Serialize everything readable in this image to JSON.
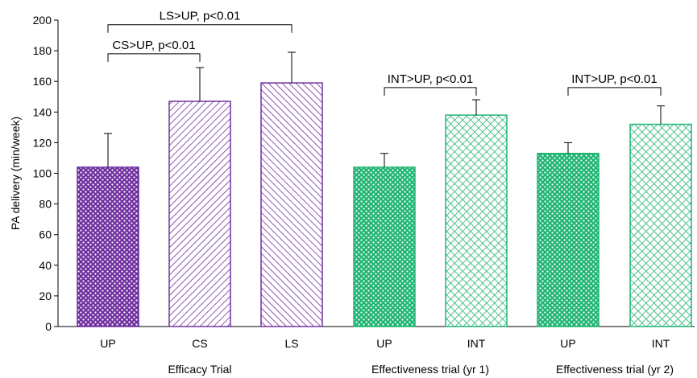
{
  "chart_data": {
    "type": "bar",
    "ylabel": "PA delivery (min/week)",
    "ylim": [
      0,
      200
    ],
    "yticks": [
      0,
      20,
      40,
      60,
      80,
      100,
      120,
      140,
      160,
      180,
      200
    ],
    "grid": false,
    "legend": "none",
    "bars": [
      {
        "label": "UP",
        "group": 0,
        "value": 104,
        "err": 22,
        "color": "#7030A0",
        "pattern": "dots"
      },
      {
        "label": "CS",
        "group": 0,
        "value": 147,
        "err": 22,
        "color": "#7030A0",
        "pattern": "diag-back"
      },
      {
        "label": "LS",
        "group": 0,
        "value": 159,
        "err": 20,
        "color": "#7030A0",
        "pattern": "diag-fwd"
      },
      {
        "label": "UP",
        "group": 1,
        "value": 104,
        "err": 9,
        "color": "#21B573",
        "pattern": "dots"
      },
      {
        "label": "INT",
        "group": 1,
        "value": 138,
        "err": 10,
        "color": "#21B573",
        "pattern": "cross"
      },
      {
        "label": "UP",
        "group": 2,
        "value": 113,
        "err": 7,
        "color": "#21B573",
        "pattern": "dots"
      },
      {
        "label": "INT",
        "group": 2,
        "value": 132,
        "err": 12,
        "color": "#21B573",
        "pattern": "cross"
      }
    ],
    "groups": [
      "Efficacy Trial",
      "Effectiveness trial (yr 1)",
      "Effectiveness trial (yr 2)"
    ],
    "annotations": [
      {
        "text": "CS>UP, p<0.01",
        "from_bar": 0,
        "to_bar": 1,
        "y": 178
      },
      {
        "text": "LS>UP, p<0.01",
        "from_bar": 0,
        "to_bar": 2,
        "y": 197
      },
      {
        "text": "INT>UP, p<0.01",
        "from_bar": 3,
        "to_bar": 4,
        "y": 156
      },
      {
        "text": "INT>UP, p<0.01",
        "from_bar": 5,
        "to_bar": 6,
        "y": 156
      }
    ]
  }
}
